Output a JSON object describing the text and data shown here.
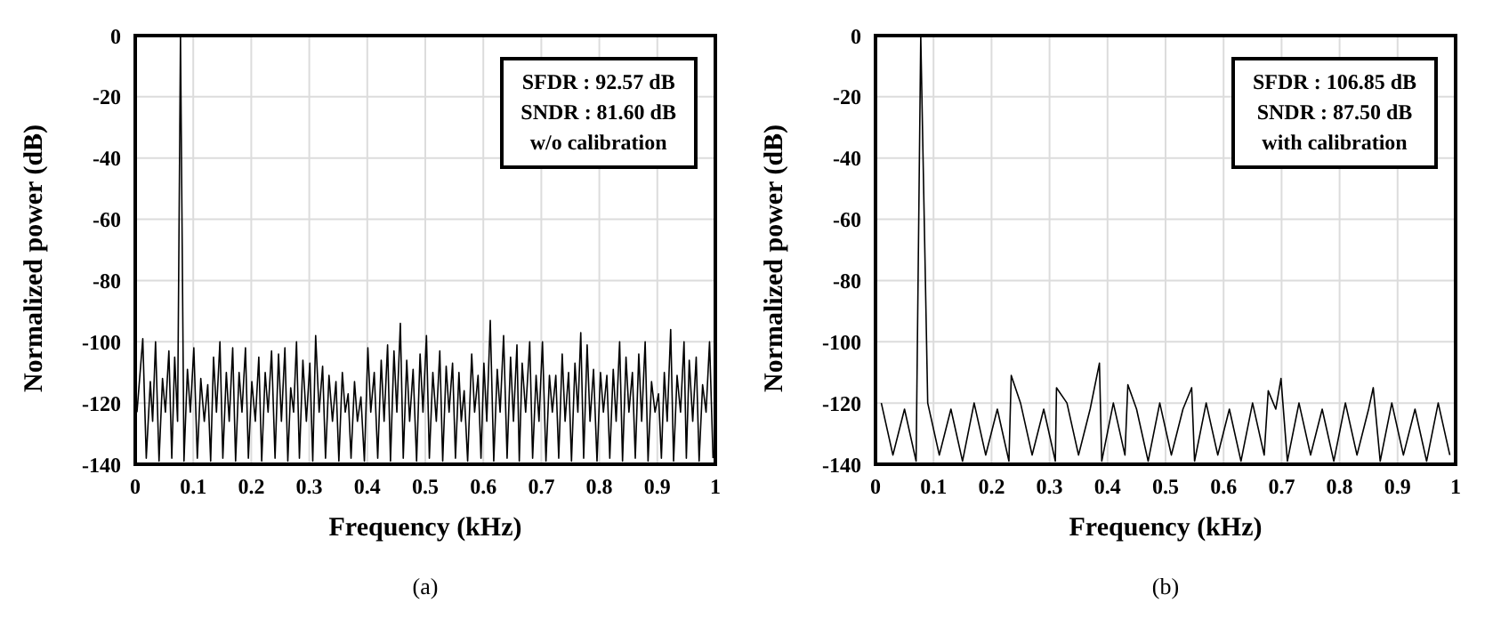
{
  "chart_data": [
    {
      "type": "line",
      "xlabel": "Frequency (kHz)",
      "ylabel": "Normalized power (dB)",
      "xlim": [
        0,
        1
      ],
      "xticks": [
        0,
        0.1,
        0.2,
        0.3,
        0.4,
        0.5,
        0.6,
        0.7,
        0.8,
        0.9,
        1
      ],
      "ylim": [
        -140,
        0
      ],
      "yticks": [
        -140,
        -120,
        -100,
        -80,
        -60,
        -40,
        -20,
        0
      ],
      "grid": true,
      "annotations": [
        "SFDR : 92.57 dB",
        "SNDR : 81.60 dB",
        "w/o calibration",
        "(a)"
      ],
      "series": [
        {
          "color": "#000000",
          "x": [
            0.003,
            0.013,
            0.019,
            0.026,
            0.03,
            0.035,
            0.041,
            0.047,
            0.052,
            0.058,
            0.063,
            0.068,
            0.073,
            0.078,
            0.084,
            0.09,
            0.095,
            0.101,
            0.107,
            0.113,
            0.119,
            0.125,
            0.13,
            0.135,
            0.14,
            0.146,
            0.151,
            0.157,
            0.162,
            0.168,
            0.173,
            0.179,
            0.184,
            0.19,
            0.195,
            0.201,
            0.207,
            0.213,
            0.218,
            0.224,
            0.229,
            0.235,
            0.241,
            0.247,
            0.252,
            0.258,
            0.263,
            0.268,
            0.273,
            0.278,
            0.283,
            0.289,
            0.295,
            0.301,
            0.306,
            0.311,
            0.317,
            0.323,
            0.328,
            0.334,
            0.34,
            0.346,
            0.351,
            0.357,
            0.362,
            0.367,
            0.372,
            0.378,
            0.383,
            0.389,
            0.395,
            0.401,
            0.406,
            0.412,
            0.418,
            0.424,
            0.429,
            0.435,
            0.44,
            0.446,
            0.451,
            0.457,
            0.462,
            0.468,
            0.473,
            0.479,
            0.485,
            0.491,
            0.496,
            0.502,
            0.507,
            0.513,
            0.519,
            0.525,
            0.53,
            0.536,
            0.541,
            0.547,
            0.552,
            0.558,
            0.562,
            0.567,
            0.573,
            0.58,
            0.585,
            0.591,
            0.596,
            0.601,
            0.606,
            0.612,
            0.618,
            0.624,
            0.629,
            0.635,
            0.641,
            0.647,
            0.652,
            0.658,
            0.662,
            0.667,
            0.673,
            0.68,
            0.685,
            0.691,
            0.696,
            0.702,
            0.708,
            0.714,
            0.719,
            0.725,
            0.73,
            0.736,
            0.741,
            0.747,
            0.752,
            0.758,
            0.763,
            0.768,
            0.773,
            0.779,
            0.784,
            0.79,
            0.796,
            0.802,
            0.807,
            0.813,
            0.818,
            0.824,
            0.829,
            0.835,
            0.84,
            0.846,
            0.851,
            0.857,
            0.862,
            0.868,
            0.873,
            0.879,
            0.884,
            0.89,
            0.896,
            0.902,
            0.907,
            0.912,
            0.917,
            0.923,
            0.928,
            0.934,
            0.94,
            0.946,
            0.95,
            0.955,
            0.961,
            0.967,
            0.972,
            0.978,
            0.984,
            0.99,
            0.996
          ],
          "values": [
            -123,
            -99,
            -138,
            -113,
            -126,
            -100,
            -139,
            -112,
            -123,
            -103,
            -138,
            -105,
            -126,
            0,
            -139,
            -109,
            -123,
            -102,
            -138,
            -112,
            -126,
            -114,
            -139,
            -105,
            -123,
            -100,
            -138,
            -110,
            -126,
            -102,
            -139,
            -110,
            -123,
            -102,
            -138,
            -113,
            -126,
            -105,
            -139,
            -110,
            -123,
            -103,
            -138,
            -104,
            -126,
            -102,
            -139,
            -115,
            -123,
            -100,
            -138,
            -106,
            -126,
            -107,
            -139,
            -98,
            -123,
            -108,
            -138,
            -111,
            -126,
            -113,
            -139,
            -110,
            -123,
            -117,
            -138,
            -113,
            -126,
            -118,
            -139,
            -102,
            -123,
            -110,
            -138,
            -106,
            -126,
            -101,
            -139,
            -103,
            -123,
            -94,
            -138,
            -106,
            -126,
            -109,
            -139,
            -104,
            -123,
            -98,
            -138,
            -110,
            -126,
            -103,
            -139,
            -108,
            -123,
            -107,
            -138,
            -110,
            -126,
            -116,
            -139,
            -104,
            -123,
            -111,
            -138,
            -107,
            -126,
            -93,
            -139,
            -109,
            -123,
            -98,
            -138,
            -105,
            -126,
            -101,
            -139,
            -107,
            -123,
            -100,
            -138,
            -111,
            -126,
            -100,
            -139,
            -111,
            -123,
            -111,
            -138,
            -104,
            -126,
            -110,
            -139,
            -107,
            -123,
            -97,
            -138,
            -101,
            -126,
            -109,
            -139,
            -110,
            -123,
            -111,
            -138,
            -109,
            -126,
            -100,
            -139,
            -105,
            -123,
            -110,
            -138,
            -104,
            -126,
            -100,
            -139,
            -113,
            -123,
            -117,
            -138,
            -110,
            -126,
            -96,
            -139,
            -111,
            -123,
            -100,
            -138,
            -106,
            -126,
            -105,
            -139,
            -114,
            -123,
            -100,
            -138
          ]
        }
      ]
    },
    {
      "type": "line",
      "xlabel": "Frequency (kHz)",
      "ylabel": "Normalized power (dB)",
      "xlim": [
        0,
        1
      ],
      "xticks": [
        0,
        0.1,
        0.2,
        0.3,
        0.4,
        0.5,
        0.6,
        0.7,
        0.8,
        0.9,
        1
      ],
      "ylim": [
        -140,
        0
      ],
      "yticks": [
        -140,
        -120,
        -100,
        -80,
        -60,
        -40,
        -20,
        0
      ],
      "grid": true,
      "annotations": [
        "SFDR : 106.85 dB",
        "SNDR : 87.50 dB",
        "with calibration",
        "(b)"
      ],
      "series": [
        {
          "color": "#000000",
          "x": [
            0.01,
            0.03,
            0.05,
            0.07,
            0.078,
            0.09,
            0.11,
            0.13,
            0.15,
            0.17,
            0.19,
            0.21,
            0.23,
            0.234,
            0.25,
            0.27,
            0.29,
            0.31,
            0.312,
            0.33,
            0.35,
            0.37,
            0.386,
            0.39,
            0.41,
            0.43,
            0.435,
            0.45,
            0.47,
            0.49,
            0.51,
            0.53,
            0.545,
            0.55,
            0.57,
            0.59,
            0.61,
            0.63,
            0.65,
            0.67,
            0.677,
            0.69,
            0.699,
            0.71,
            0.73,
            0.75,
            0.77,
            0.79,
            0.81,
            0.83,
            0.85,
            0.858,
            0.87,
            0.89,
            0.91,
            0.93,
            0.95,
            0.97,
            0.99
          ],
          "values": [
            -120,
            -137,
            -122,
            -139,
            0,
            -120,
            -137,
            -122,
            -139,
            -120,
            -137,
            -122,
            -139,
            -111,
            -120,
            -137,
            -122,
            -139,
            -115,
            -120,
            -137,
            -122,
            -107,
            -139,
            -120,
            -137,
            -114,
            -122,
            -139,
            -120,
            -137,
            -122,
            -115,
            -139,
            -120,
            -137,
            -122,
            -139,
            -120,
            -137,
            -116,
            -122,
            -112,
            -139,
            -120,
            -137,
            -122,
            -139,
            -120,
            -137,
            -122,
            -115,
            -139,
            -120,
            -137,
            -122,
            -139,
            -120,
            -137
          ]
        }
      ]
    }
  ]
}
